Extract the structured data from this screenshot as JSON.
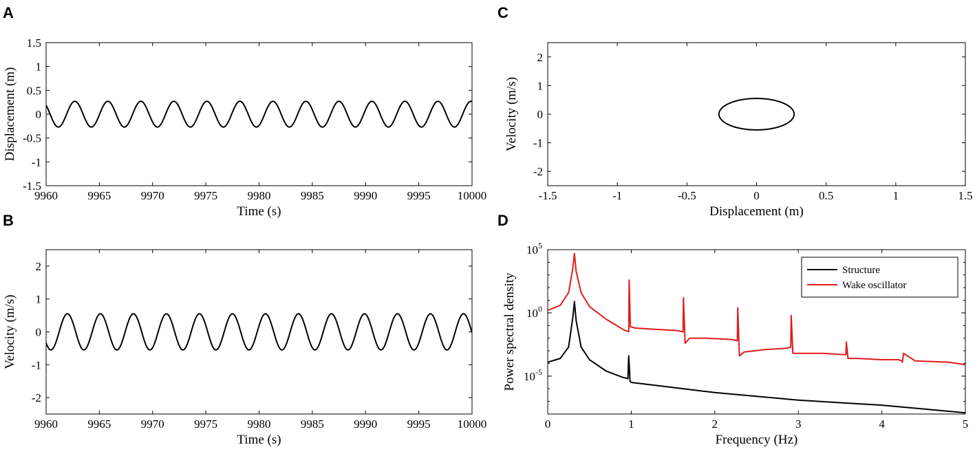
{
  "chart_data": [
    {
      "panel": "A",
      "type": "line",
      "title": "",
      "xlabel": "Time (s)",
      "ylabel": "Displacement (m)",
      "xlim": [
        9960,
        10000
      ],
      "ylim": [
        -1.5,
        1.5
      ],
      "xticks": [
        9960,
        9965,
        9970,
        9975,
        9980,
        9985,
        9990,
        9995,
        10000
      ],
      "yticks": [
        -1.5,
        -1,
        -0.5,
        0,
        0.5,
        1,
        1.5
      ],
      "xtick_labels": [
        "9960",
        "9965",
        "9970",
        "9975",
        "9980",
        "9985",
        "9990",
        "9995",
        "10000"
      ],
      "ytick_labels": [
        "-1.5",
        "-1",
        "-0.5",
        "0",
        "0.5",
        "1",
        "1.5"
      ],
      "series": [
        {
          "name": "Displacement",
          "color": "#000000",
          "amplitude": 0.27,
          "period": 3.1,
          "first_peak": 9962.7
        }
      ]
    },
    {
      "panel": "B",
      "type": "line",
      "title": "",
      "xlabel": "Time (s)",
      "ylabel": "Velocity (m/s)",
      "xlim": [
        9960,
        10000
      ],
      "ylim": [
        -2.5,
        2.5
      ],
      "xticks": [
        9960,
        9965,
        9970,
        9975,
        9980,
        9985,
        9990,
        9995,
        10000
      ],
      "yticks": [
        -2,
        -1,
        0,
        1,
        2
      ],
      "xtick_labels": [
        "9960",
        "9965",
        "9970",
        "9975",
        "9980",
        "9985",
        "9990",
        "9995",
        "10000"
      ],
      "ytick_labels": [
        "-2",
        "-1",
        "0",
        "1",
        "2"
      ],
      "series": [
        {
          "name": "Velocity",
          "color": "#000000",
          "amplitude": 0.55,
          "period": 3.1,
          "first_peak": 9962.0
        }
      ]
    },
    {
      "panel": "C",
      "type": "line",
      "title": "",
      "xlabel": "Displacement (m)",
      "ylabel": "Velocity (m/s)",
      "xlim": [
        -1.5,
        1.5
      ],
      "ylim": [
        -2.5,
        2.5
      ],
      "xticks": [
        -1.5,
        -1,
        -0.5,
        0,
        0.5,
        1,
        1.5
      ],
      "yticks": [
        -2,
        -1,
        0,
        1,
        2
      ],
      "xtick_labels": [
        "-1.5",
        "-1",
        "-0.5",
        "0",
        "0.5",
        "1",
        "1.5"
      ],
      "ytick_labels": [
        "-2",
        "-1",
        "0",
        "1",
        "2"
      ],
      "series": [
        {
          "name": "Phase portrait",
          "color": "#000000",
          "x_amplitude": 0.27,
          "y_amplitude": 0.55
        }
      ]
    },
    {
      "panel": "D",
      "type": "line",
      "title": "",
      "xlabel": "Frequency (Hz)",
      "ylabel": "Power spectral density",
      "xlim": [
        0,
        5
      ],
      "ylim_log10": [
        -8,
        5
      ],
      "yscale": "log",
      "xticks": [
        0,
        1,
        2,
        3,
        4,
        5
      ],
      "xtick_labels": [
        "0",
        "1",
        "2",
        "3",
        "4",
        "5"
      ],
      "ytick_log10": [
        -5,
        0,
        5
      ],
      "ytick_bases": [
        "10",
        "10",
        "10"
      ],
      "ytick_exps": [
        "-5",
        "0",
        "5"
      ],
      "legend": {
        "position": "top-right"
      },
      "series": [
        {
          "name": "Structure",
          "color": "#000000",
          "x": [
            0,
            0.15,
            0.25,
            0.3,
            0.32,
            0.34,
            0.4,
            0.5,
            0.7,
            0.9,
            0.96,
            0.97,
            0.98,
            0.985,
            1.0,
            1.5,
            2.0,
            2.5,
            3.0,
            3.5,
            4.0,
            4.5,
            5.0
          ],
          "log10_psd": [
            -3.9,
            -3.6,
            -2.7,
            -0.4,
            0.9,
            -0.6,
            -2.7,
            -3.7,
            -4.6,
            -5.1,
            -5.2,
            -3.4,
            -4.6,
            -5.4,
            -5.5,
            -5.9,
            -6.3,
            -6.6,
            -6.9,
            -7.1,
            -7.3,
            -7.6,
            -7.9
          ]
        },
        {
          "name": "Wake oscillator",
          "color": "#e31a1c",
          "x": [
            0,
            0.15,
            0.25,
            0.3,
            0.32,
            0.34,
            0.4,
            0.5,
            0.7,
            0.9,
            0.97,
            0.975,
            0.99,
            1.05,
            1.3,
            1.55,
            1.62,
            1.625,
            1.645,
            1.7,
            1.9,
            2.2,
            2.27,
            2.275,
            2.295,
            2.35,
            2.6,
            2.86,
            2.91,
            2.915,
            2.935,
            3.0,
            3.3,
            3.55,
            3.57,
            3.575,
            3.595,
            3.7,
            4.0,
            4.2,
            4.24,
            4.245,
            4.26,
            4.4,
            4.8,
            5.0
          ],
          "log10_psd": [
            0.2,
            0.6,
            1.6,
            3.5,
            4.7,
            3.3,
            1.6,
            0.5,
            -0.5,
            -1.3,
            -1.5,
            2.6,
            -1.1,
            -1.2,
            -1.3,
            -1.4,
            -1.5,
            1.2,
            -2.4,
            -2.0,
            -2.0,
            -2.1,
            -2.2,
            0.4,
            -3.4,
            -3.1,
            -2.9,
            -2.8,
            -2.7,
            -0.2,
            -3.2,
            -3.2,
            -3.2,
            -3.3,
            -3.3,
            -2.3,
            -3.6,
            -3.6,
            -3.7,
            -3.7,
            -3.8,
            -3.9,
            -3.2,
            -3.8,
            -3.9,
            -4.1
          ]
        }
      ]
    }
  ]
}
